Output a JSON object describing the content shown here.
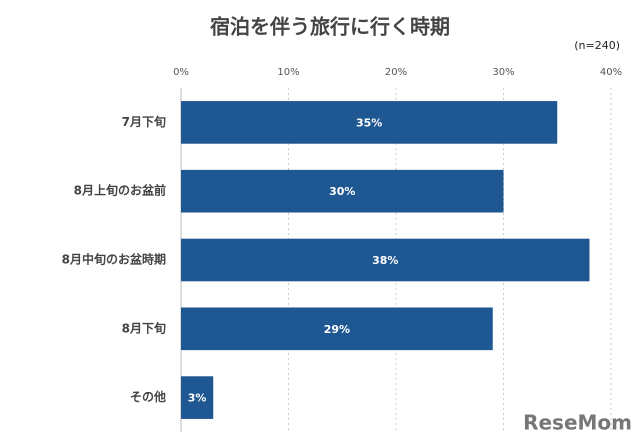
{
  "chart_data": {
    "type": "bar",
    "orientation": "horizontal",
    "title": "宿泊を伴う旅行に行く時期",
    "note": "(n=240)",
    "categories": [
      "7月下旬",
      "8月上旬のお盆前",
      "8月中旬のお盆時期",
      "8月下旬",
      "その他"
    ],
    "values": [
      35,
      30,
      38,
      29,
      3
    ],
    "value_labels": [
      "35%",
      "30%",
      "38%",
      "29%",
      "3%"
    ],
    "color": "#1f5793",
    "xlim": [
      0,
      40
    ],
    "xticks": [
      {
        "value": 0,
        "label": "0%"
      },
      {
        "value": 10,
        "label": "10%"
      },
      {
        "value": 20,
        "label": "20%"
      },
      {
        "value": 30,
        "label": "30%"
      },
      {
        "value": 40,
        "label": "40%"
      }
    ],
    "grid": true,
    "watermark": "ReseMom"
  }
}
